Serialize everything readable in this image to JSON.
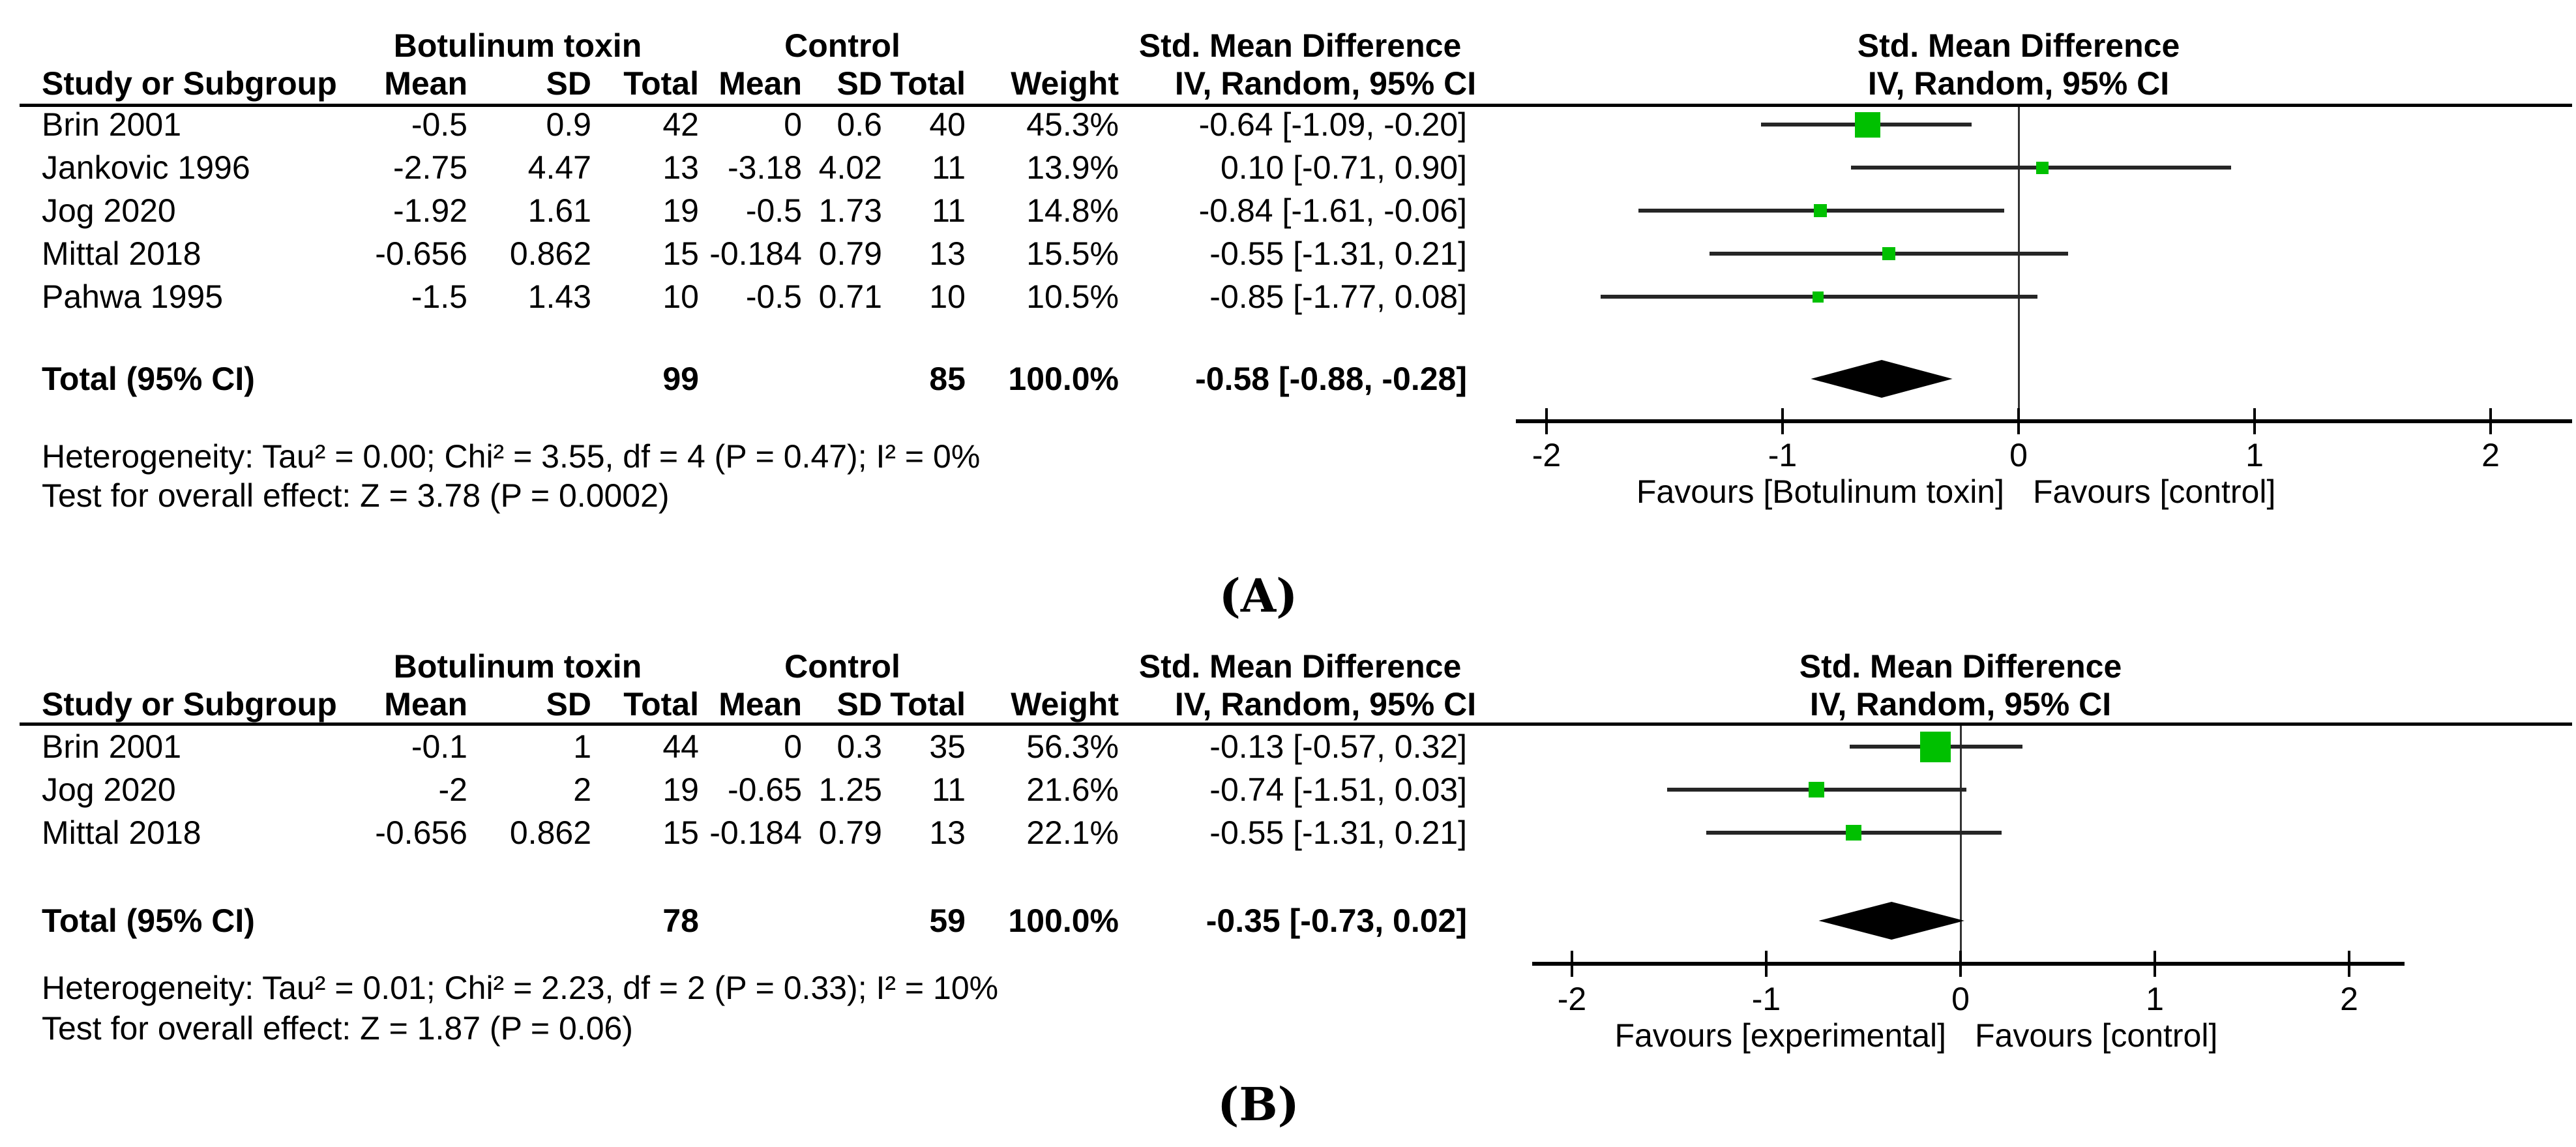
{
  "colors": {
    "marker_green": "#00c000",
    "diamond_black": "#000000",
    "line_black": "#000000",
    "whisker_dark": "#262626"
  },
  "panels": [
    {
      "label": "(A)",
      "header": {
        "study_col": "Study or Subgroup",
        "group1": "Botulinum toxin",
        "group2": "Control",
        "effect_title": "Std. Mean Difference",
        "subcols": [
          "Mean",
          "SD",
          "Total",
          "Mean",
          "SD",
          "Total",
          "Weight"
        ],
        "effect_subtitle": "IV, Random, 95% CI"
      },
      "plot_header": {
        "title": "Std. Mean Difference",
        "subtitle": "IV, Random, 95% CI"
      },
      "studies": [
        {
          "name": "Brin 2001",
          "mean1": "-0.5",
          "sd1": "0.9",
          "n1": "42",
          "mean2": "0",
          "sd2": "0.6",
          "n2": "40",
          "weight": "45.3%",
          "ci": "-0.64 [-1.09, -0.20]"
        },
        {
          "name": "Jankovic 1996",
          "mean1": "-2.75",
          "sd1": "4.47",
          "n1": "13",
          "mean2": "-3.18",
          "sd2": "4.02",
          "n2": "11",
          "weight": "13.9%",
          "ci": "0.10 [-0.71, 0.90]"
        },
        {
          "name": "Jog 2020",
          "mean1": "-1.92",
          "sd1": "1.61",
          "n1": "19",
          "mean2": "-0.5",
          "sd2": "1.73",
          "n2": "11",
          "weight": "14.8%",
          "ci": "-0.84 [-1.61, -0.06]"
        },
        {
          "name": "Mittal 2018",
          "mean1": "-0.656",
          "sd1": "0.862",
          "n1": "15",
          "mean2": "-0.184",
          "sd2": "0.79",
          "n2": "13",
          "weight": "15.5%",
          "ci": "-0.55 [-1.31, 0.21]"
        },
        {
          "name": "Pahwa 1995",
          "mean1": "-1.5",
          "sd1": "1.43",
          "n1": "10",
          "mean2": "-0.5",
          "sd2": "0.71",
          "n2": "10",
          "weight": "10.5%",
          "ci": "-0.85 [-1.77, 0.08]"
        }
      ],
      "total": {
        "label": "Total (95% CI)",
        "n1": "99",
        "n2": "85",
        "weight": "100.0%",
        "ci": "-0.58 [-0.88, -0.28]"
      },
      "footnotes": [
        "Heterogeneity: Tau² = 0.00; Chi² = 3.55, df = 4 (P = 0.47); I² = 0%",
        "Test for overall effect: Z = 3.78 (P = 0.0002)"
      ],
      "axis": {
        "tick_labels": [
          "-2",
          "-1",
          "0",
          "1",
          "2"
        ],
        "favours_left": "Favours [Botulinum toxin]",
        "favours_right": "Favours [control]"
      }
    },
    {
      "label": "(B)",
      "header": {
        "study_col": "Study or Subgroup",
        "group1": "Botulinum toxin",
        "group2": "Control",
        "effect_title": "Std. Mean Difference",
        "subcols": [
          "Mean",
          "SD",
          "Total",
          "Mean",
          "SD",
          "Total",
          "Weight"
        ],
        "effect_subtitle": "IV, Random, 95% CI"
      },
      "plot_header": {
        "title": "Std. Mean Difference",
        "subtitle": "IV, Random, 95% CI"
      },
      "studies": [
        {
          "name": "Brin 2001",
          "mean1": "-0.1",
          "sd1": "1",
          "n1": "44",
          "mean2": "0",
          "sd2": "0.3",
          "n2": "35",
          "weight": "56.3%",
          "ci": "-0.13 [-0.57, 0.32]"
        },
        {
          "name": "Jog 2020",
          "mean1": "-2",
          "sd1": "2",
          "n1": "19",
          "mean2": "-0.65",
          "sd2": "1.25",
          "n2": "11",
          "weight": "21.6%",
          "ci": "-0.74 [-1.51, 0.03]"
        },
        {
          "name": "Mittal 2018",
          "mean1": "-0.656",
          "sd1": "0.862",
          "n1": "15",
          "mean2": "-0.184",
          "sd2": "0.79",
          "n2": "13",
          "weight": "22.1%",
          "ci": "-0.55 [-1.31, 0.21]"
        }
      ],
      "total": {
        "label": "Total (95% CI)",
        "n1": "78",
        "n2": "59",
        "weight": "100.0%",
        "ci": "-0.35 [-0.73, 0.02]"
      },
      "footnotes": [
        "Heterogeneity: Tau² = 0.01; Chi² = 2.23, df = 2 (P = 0.33); I² = 10%",
        "Test for overall effect: Z = 1.87 (P = 0.06)"
      ],
      "axis": {
        "tick_labels": [
          "-2",
          "-1",
          "0",
          "1",
          "2"
        ],
        "favours_left": "Favours [experimental]",
        "favours_right": "Favours [control]"
      }
    }
  ],
  "chart_data": [
    {
      "type": "forest",
      "effect_measure": "Std. Mean Difference",
      "model": "IV, Random, 95% CI",
      "xlim": [
        -2,
        2
      ],
      "ticks": [
        -2,
        -1,
        0,
        1,
        2
      ],
      "favours": [
        "Favours [Botulinum toxin]",
        "Favours [control]"
      ],
      "studies": [
        {
          "study": "Brin 2001",
          "mean_exp": -0.5,
          "sd_exp": 0.9,
          "n_exp": 42,
          "mean_ctl": 0,
          "sd_ctl": 0.6,
          "n_ctl": 40,
          "weight_pct": 45.3,
          "smd": -0.64,
          "ci_low": -1.09,
          "ci_high": -0.2
        },
        {
          "study": "Jankovic 1996",
          "mean_exp": -2.75,
          "sd_exp": 4.47,
          "n_exp": 13,
          "mean_ctl": -3.18,
          "sd_ctl": 4.02,
          "n_ctl": 11,
          "weight_pct": 13.9,
          "smd": 0.1,
          "ci_low": -0.71,
          "ci_high": 0.9
        },
        {
          "study": "Jog 2020",
          "mean_exp": -1.92,
          "sd_exp": 1.61,
          "n_exp": 19,
          "mean_ctl": -0.5,
          "sd_ctl": 1.73,
          "n_ctl": 11,
          "weight_pct": 14.8,
          "smd": -0.84,
          "ci_low": -1.61,
          "ci_high": -0.06
        },
        {
          "study": "Mittal 2018",
          "mean_exp": -0.656,
          "sd_exp": 0.862,
          "n_exp": 15,
          "mean_ctl": -0.184,
          "sd_ctl": 0.79,
          "n_ctl": 13,
          "weight_pct": 15.5,
          "smd": -0.55,
          "ci_low": -1.31,
          "ci_high": 0.21
        },
        {
          "study": "Pahwa 1995",
          "mean_exp": -1.5,
          "sd_exp": 1.43,
          "n_exp": 10,
          "mean_ctl": -0.5,
          "sd_ctl": 0.71,
          "n_ctl": 10,
          "weight_pct": 10.5,
          "smd": -0.85,
          "ci_low": -1.77,
          "ci_high": 0.08
        }
      ],
      "total": {
        "n_exp": 99,
        "n_ctl": 85,
        "weight_pct": 100.0,
        "smd": -0.58,
        "ci_low": -0.88,
        "ci_high": -0.28
      },
      "heterogeneity": "Tau² = 0.00; Chi² = 3.55, df = 4 (P = 0.47); I² = 0%",
      "overall_effect": "Z = 3.78 (P = 0.0002)"
    },
    {
      "type": "forest",
      "effect_measure": "Std. Mean Difference",
      "model": "IV, Random, 95% CI",
      "xlim": [
        -2,
        2
      ],
      "ticks": [
        -2,
        -1,
        0,
        1,
        2
      ],
      "favours": [
        "Favours [experimental]",
        "Favours [control]"
      ],
      "studies": [
        {
          "study": "Brin 2001",
          "mean_exp": -0.1,
          "sd_exp": 1,
          "n_exp": 44,
          "mean_ctl": 0,
          "sd_ctl": 0.3,
          "n_ctl": 35,
          "weight_pct": 56.3,
          "smd": -0.13,
          "ci_low": -0.57,
          "ci_high": 0.32
        },
        {
          "study": "Jog 2020",
          "mean_exp": -2,
          "sd_exp": 2,
          "n_exp": 19,
          "mean_ctl": -0.65,
          "sd_ctl": 1.25,
          "n_ctl": 11,
          "weight_pct": 21.6,
          "smd": -0.74,
          "ci_low": -1.51,
          "ci_high": 0.03
        },
        {
          "study": "Mittal 2018",
          "mean_exp": -0.656,
          "sd_exp": 0.862,
          "n_exp": 15,
          "mean_ctl": -0.184,
          "sd_ctl": 0.79,
          "n_ctl": 13,
          "weight_pct": 22.1,
          "smd": -0.55,
          "ci_low": -1.31,
          "ci_high": 0.21
        }
      ],
      "total": {
        "n_exp": 78,
        "n_ctl": 59,
        "weight_pct": 100.0,
        "smd": -0.35,
        "ci_low": -0.73,
        "ci_high": 0.02
      },
      "heterogeneity": "Tau² = 0.01; Chi² = 2.23, df = 2 (P = 0.33); I² = 10%",
      "overall_effect": "Z = 1.87 (P = 0.06)"
    }
  ]
}
